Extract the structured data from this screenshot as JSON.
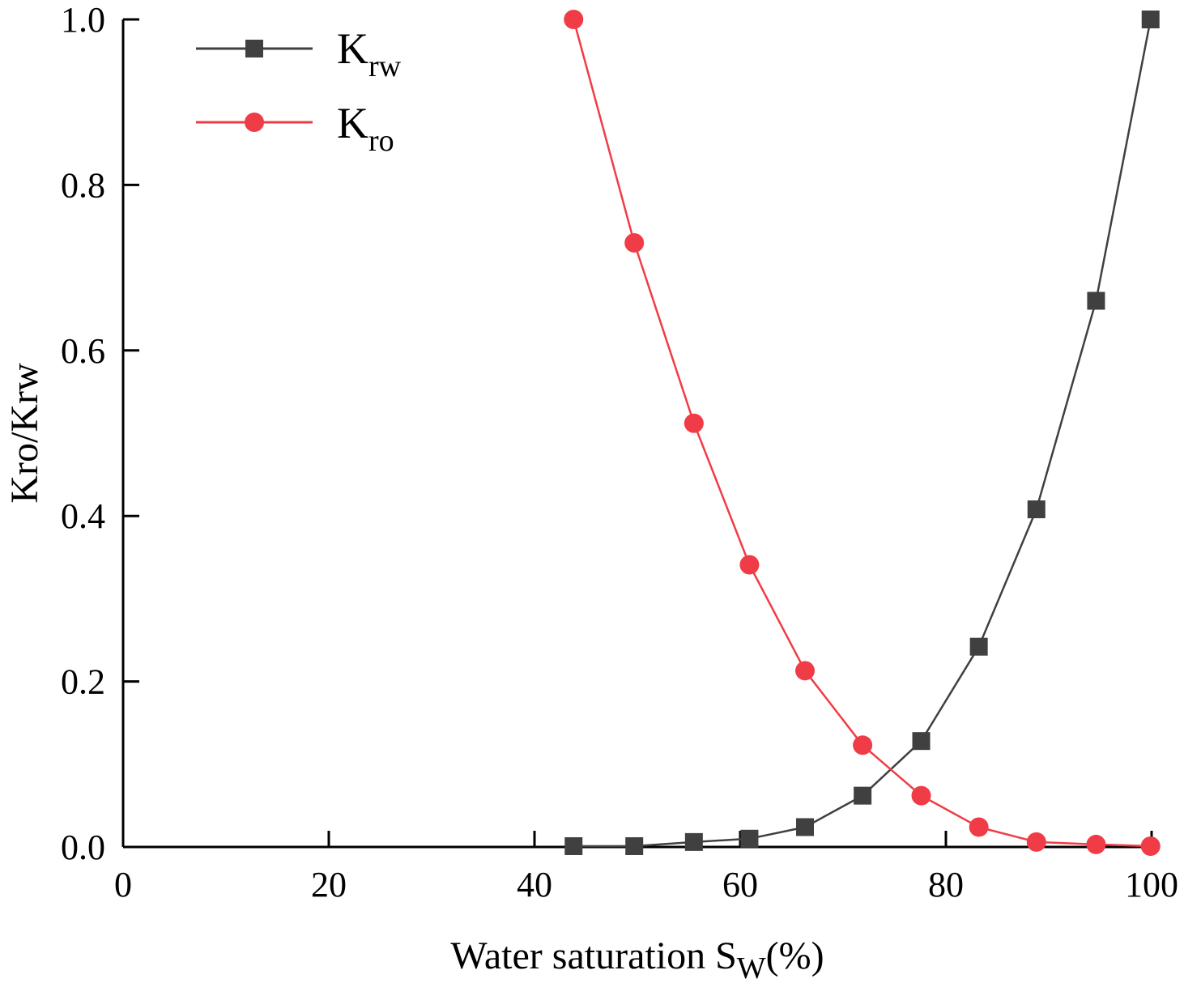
{
  "chart_data": {
    "type": "line",
    "title": "",
    "xlabel": {
      "main": "Water saturation S",
      "sub": "W",
      "suffix": "(%)"
    },
    "ylabel": "Kro/Krw",
    "xlim": [
      0,
      100
    ],
    "ylim": [
      0.0,
      1.0
    ],
    "x_ticks": [
      0,
      20,
      40,
      60,
      80,
      100
    ],
    "x_tick_labels": [
      "0",
      "20",
      "40",
      "60",
      "80",
      "100"
    ],
    "y_ticks": [
      0.0,
      0.2,
      0.4,
      0.6,
      0.8,
      1.0
    ],
    "y_tick_labels": [
      "0.0",
      "0.2",
      "0.4",
      "0.6",
      "0.8",
      "1.0"
    ],
    "grid": false,
    "legend_position": "top-left",
    "x": [
      43.8,
      49.7,
      55.5,
      60.9,
      66.3,
      71.9,
      77.6,
      83.2,
      88.8,
      94.6,
      99.9
    ],
    "series": [
      {
        "name": "Krw",
        "label_main": "K",
        "label_sub": "rw",
        "marker": "square",
        "color": "#404040",
        "values": [
          0.001,
          0.001,
          0.006,
          0.01,
          0.024,
          0.062,
          0.128,
          0.242,
          0.408,
          0.66,
          1.0
        ]
      },
      {
        "name": "Kro",
        "label_main": "K",
        "label_sub": "ro",
        "marker": "circle",
        "color": "#f03c46",
        "values": [
          1.0,
          0.73,
          0.512,
          0.341,
          0.213,
          0.123,
          0.062,
          0.024,
          0.006,
          0.003,
          0.001
        ]
      }
    ]
  }
}
